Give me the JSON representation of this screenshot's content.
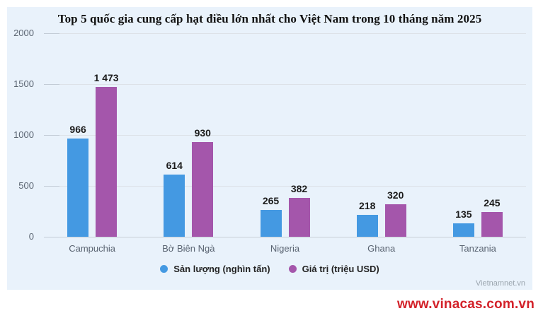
{
  "title": "Top 5 quốc gia cung cấp hạt điều lớn nhất cho Việt Nam trong 10 tháng năm 2025",
  "watermark_inner": "Vietnamnet.vn",
  "watermark_outer": "www.vinacas.com.vn",
  "colors": {
    "panel_bg": "#e9f2fb",
    "series_output": "#4499e2",
    "series_value": "#a456ab",
    "grid": "#dde2e8",
    "axis_text": "#5b6572",
    "data_label": "#1c1c1c",
    "watermark_gray": "#9ba5ae",
    "watermark_red": "#d3222a"
  },
  "chart_data": {
    "type": "bar",
    "title": "Top 5 quốc gia cung cấp hạt điều lớn nhất cho Việt Nam trong 10 tháng năm 2025",
    "categories": [
      "Campuchia",
      "Bờ Biên Ngà",
      "Nigeria",
      "Ghana",
      "Tanzania"
    ],
    "series": [
      {
        "name": "Sản lượng (nghìn tấn)",
        "color": "#4499e2",
        "values": [
          966,
          614,
          265,
          218,
          135
        ],
        "labels": [
          "966",
          "614",
          "265",
          "218",
          "135"
        ]
      },
      {
        "name": "Giá trị (triệu USD)",
        "color": "#a456ab",
        "values": [
          1473,
          930,
          382,
          320,
          245
        ],
        "labels": [
          "1 473",
          "930",
          "382",
          "320",
          "245"
        ]
      }
    ],
    "xlabel": "",
    "ylabel": "",
    "ylim": [
      0,
      2000
    ],
    "ytick_step": 500,
    "ytick_labels": [
      "0",
      "500",
      "1000",
      "1500",
      "2000"
    ],
    "grid": true,
    "legend_position": "bottom"
  }
}
